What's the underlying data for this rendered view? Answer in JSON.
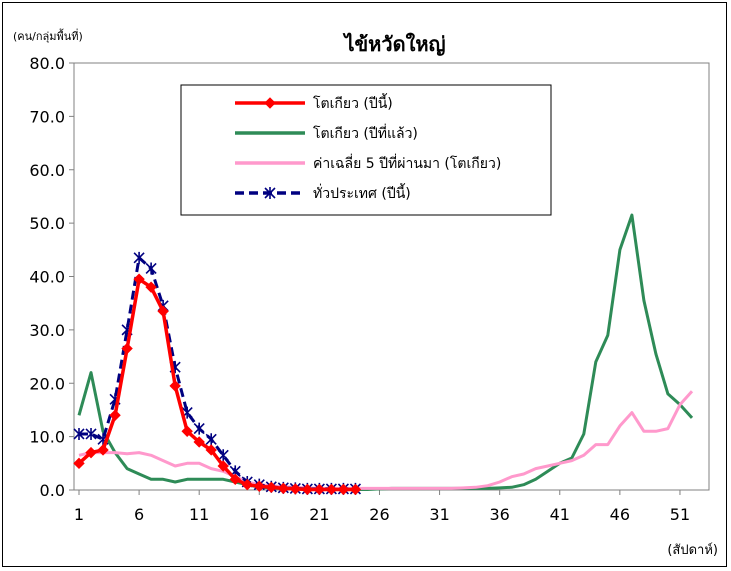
{
  "chart_data": {
    "type": "line",
    "title": "ไข้หวัดใหญ่",
    "ylabel": "(คน/กลุ่มพื้นที่)",
    "xlabel": "(สัปดาห์)",
    "xlim": [
      1,
      53
    ],
    "ylim": [
      0,
      80
    ],
    "x_ticks": [
      "1",
      "6",
      "11",
      "16",
      "21",
      "26",
      "31",
      "36",
      "41",
      "46",
      "51"
    ],
    "y_ticks": [
      "0.0",
      "10.0",
      "20.0",
      "30.0",
      "40.0",
      "50.0",
      "60.0",
      "70.0",
      "80.0"
    ],
    "grid": false,
    "legend_position": "top-center",
    "series": [
      {
        "name": "โตเกียว (ปีนี้)",
        "color": "#ff0000",
        "style": "solid-diamond",
        "x": [
          1,
          2,
          3,
          4,
          5,
          6,
          7,
          8,
          9,
          10,
          11,
          12,
          13,
          14,
          15,
          16,
          17,
          18,
          19,
          20,
          21,
          22,
          23,
          24
        ],
        "values": [
          5.0,
          7.0,
          7.5,
          14.0,
          26.5,
          39.5,
          38.0,
          33.5,
          19.5,
          11.0,
          9.0,
          7.5,
          4.5,
          2.0,
          1.0,
          0.7,
          0.5,
          0.3,
          0.2,
          0.1,
          0.1,
          0.1,
          0.1,
          0.1
        ]
      },
      {
        "name": "โตเกียว (ปีที่แล้ว)",
        "color": "#2e8b57",
        "style": "solid",
        "x": [
          1,
          2,
          3,
          4,
          5,
          6,
          7,
          8,
          9,
          10,
          11,
          12,
          13,
          14,
          15,
          16,
          17,
          18,
          19,
          20,
          21,
          22,
          23,
          24,
          25,
          26,
          27,
          28,
          29,
          30,
          31,
          32,
          33,
          34,
          35,
          36,
          37,
          38,
          39,
          40,
          41,
          42,
          43,
          44,
          45,
          46,
          47,
          48,
          49,
          50,
          51,
          52
        ],
        "values": [
          14.0,
          22.0,
          11.0,
          7.0,
          4.0,
          3.0,
          2.0,
          2.0,
          1.5,
          2.0,
          2.0,
          2.0,
          2.0,
          1.5,
          1.0,
          0.5,
          0.4,
          0.3,
          0.2,
          0.1,
          0.1,
          0.1,
          0.1,
          0.1,
          0.1,
          0.2,
          0.3,
          0.3,
          0.3,
          0.3,
          0.3,
          0.3,
          0.3,
          0.3,
          0.3,
          0.4,
          0.5,
          1.0,
          2.0,
          3.5,
          5.0,
          6.0,
          10.5,
          24.0,
          29.0,
          45.0,
          51.5,
          35.5,
          25.5,
          18.0,
          16.0,
          13.5
        ]
      },
      {
        "name": "ค่าเฉลี่ย 5 ปีที่ผ่านมา (โตเกียว)",
        "color": "#ff99cc",
        "style": "solid",
        "x": [
          1,
          2,
          3,
          4,
          5,
          6,
          7,
          8,
          9,
          10,
          11,
          12,
          13,
          14,
          15,
          16,
          17,
          18,
          19,
          20,
          21,
          22,
          23,
          24,
          25,
          26,
          27,
          28,
          29,
          30,
          31,
          32,
          33,
          34,
          35,
          36,
          37,
          38,
          39,
          40,
          41,
          42,
          43,
          44,
          45,
          46,
          47,
          48,
          49,
          50,
          51,
          52
        ],
        "values": [
          6.5,
          7.0,
          7.0,
          7.0,
          6.8,
          7.0,
          6.5,
          5.5,
          4.5,
          5.0,
          5.0,
          4.0,
          3.5,
          2.5,
          1.5,
          1.0,
          0.8,
          0.6,
          0.5,
          0.4,
          0.3,
          0.3,
          0.3,
          0.3,
          0.3,
          0.3,
          0.3,
          0.3,
          0.3,
          0.3,
          0.3,
          0.3,
          0.4,
          0.5,
          0.8,
          1.5,
          2.5,
          3.0,
          4.0,
          4.5,
          5.0,
          5.5,
          6.5,
          8.5,
          8.5,
          12.0,
          14.5,
          11.0,
          11.0,
          11.5,
          16.0,
          18.5
        ]
      },
      {
        "name": "ทั่วประเทศ (ปีนี้)",
        "color": "#000080",
        "style": "dashed-star",
        "x": [
          1,
          2,
          3,
          4,
          5,
          6,
          7,
          8,
          9,
          10,
          11,
          12,
          13,
          14,
          15,
          16,
          17,
          18,
          19,
          20,
          21,
          22,
          23,
          24
        ],
        "values": [
          10.5,
          10.5,
          9.5,
          17.0,
          30.0,
          43.5,
          41.5,
          34.5,
          23.0,
          14.5,
          11.5,
          9.5,
          6.5,
          3.5,
          1.5,
          1.0,
          0.6,
          0.4,
          0.3,
          0.2,
          0.2,
          0.2,
          0.2,
          0.2
        ]
      }
    ]
  }
}
